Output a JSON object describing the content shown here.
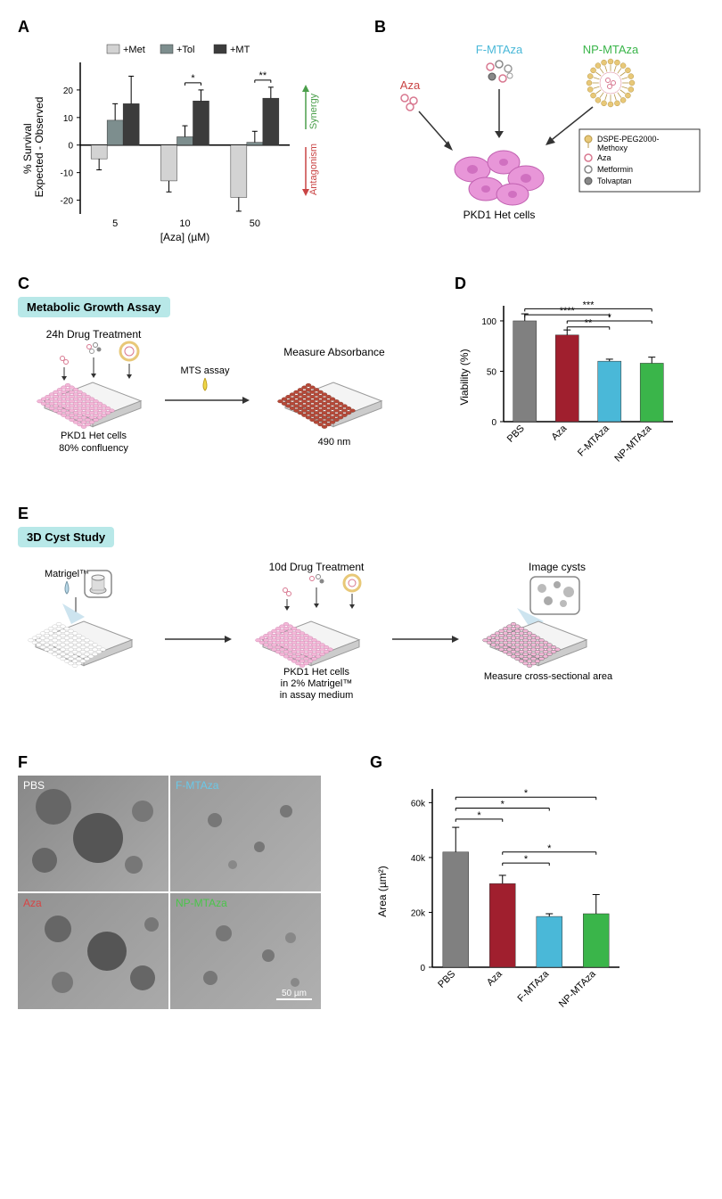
{
  "panelA": {
    "label": "A",
    "type": "bar",
    "ylabel": "% Survival\nExpected - Observed",
    "xlabel": "[Aza] (µM)",
    "categories": [
      "5",
      "10",
      "50"
    ],
    "series": [
      {
        "name": "+Met",
        "color": "#d3d3d3",
        "values": [
          -5,
          -13,
          -19
        ],
        "errors": [
          4,
          4,
          5
        ]
      },
      {
        "name": "+Tol",
        "color": "#7d8e8e",
        "values": [
          9,
          3,
          1
        ],
        "errors": [
          6,
          4,
          4
        ]
      },
      {
        "name": "+MT",
        "color": "#3c3c3c",
        "values": [
          15,
          16,
          17
        ],
        "errors": [
          10,
          4,
          4
        ]
      }
    ],
    "ylim": [
      -25,
      30
    ],
    "ytick_step": 10,
    "synergy_label": "Synergy",
    "synergy_color": "#4a9e4a",
    "antagonism_label": "Antagonism",
    "antagonism_color": "#c94444",
    "sig_markers": [
      {
        "group": 1,
        "from": 1,
        "to": 2,
        "label": "*"
      },
      {
        "group": 2,
        "from": 1,
        "to": 2,
        "label": "**"
      }
    ]
  },
  "panelB": {
    "label": "B",
    "aza_label": "Aza",
    "aza_color": "#c94444",
    "fmtaza_label": "F-MTAza",
    "fmtaza_color": "#4ab8d8",
    "npmtaza_label": "NP-MTAza",
    "npmtaza_color": "#3ab54a",
    "cells_label": "PKD1 Het cells",
    "legend_items": [
      {
        "name": "DSPE-PEG2000-Methoxy",
        "symbol": "lipid",
        "color": "#e8c878"
      },
      {
        "name": "Aza",
        "symbol": "circle",
        "color": "#d87890"
      },
      {
        "name": "Metformin",
        "symbol": "circle",
        "color": "#ffffff"
      },
      {
        "name": "Tolvaptan",
        "symbol": "circle",
        "color": "#888888"
      }
    ]
  },
  "panelC": {
    "label": "C",
    "title": "Metabolic Growth Assay",
    "step1_label": "24h Drug Treatment",
    "step1_sub": "PKD1 Het cells\n80% confluency",
    "mts_label": "MTS assay",
    "step2_label": "Measure Absorbance",
    "step2_sub": "490 nm"
  },
  "panelD": {
    "label": "D",
    "type": "bar",
    "ylabel": "Viability (%)",
    "categories": [
      "PBS",
      "Aza",
      "F-MTAza",
      "NP-MTAza"
    ],
    "values": [
      100,
      86,
      60,
      58
    ],
    "errors": [
      7,
      5,
      2,
      6
    ],
    "colors": [
      "#808080",
      "#a01f2e",
      "#4ab8d8",
      "#3ab54a"
    ],
    "ylim": [
      0,
      115
    ],
    "ytick_step": 50,
    "sig_markers": [
      {
        "from": 0,
        "to": 3,
        "y": 112,
        "label": "***"
      },
      {
        "from": 0,
        "to": 2,
        "y": 106,
        "label": "****"
      },
      {
        "from": 1,
        "to": 3,
        "y": 100,
        "label": "*"
      },
      {
        "from": 1,
        "to": 2,
        "y": 94,
        "label": "**"
      }
    ]
  },
  "panelE": {
    "label": "E",
    "title": "3D Cyst Study",
    "matrigel_label": "Matrigel™",
    "step2_label": "10d Drug Treatment",
    "step2_sub": "PKD1 Het cells\nin 2% Matrigel™\nin assay medium",
    "step3_label": "Image cysts",
    "step3_sub": "Measure cross-sectional area"
  },
  "panelF": {
    "label": "F",
    "images": [
      {
        "label": "PBS",
        "color": "#ffffff"
      },
      {
        "label": "F-MTAza",
        "color": "#6ac8e8"
      },
      {
        "label": "Aza",
        "color": "#d84444"
      },
      {
        "label": "NP-MTAza",
        "color": "#4ac54a"
      }
    ],
    "scale_label": "50 µm"
  },
  "panelG": {
    "label": "G",
    "type": "bar",
    "ylabel": "Area (µm²)",
    "categories": [
      "PBS",
      "Aza",
      "F-MTAza",
      "NP-MTAza"
    ],
    "values": [
      42000,
      30500,
      18500,
      19500
    ],
    "errors": [
      9000,
      3000,
      1000,
      7000
    ],
    "colors": [
      "#808080",
      "#a01f2e",
      "#4ab8d8",
      "#3ab54a"
    ],
    "ylim": [
      0,
      65000
    ],
    "ytick_step": 20000,
    "yticklabels": [
      "0",
      "20k",
      "40k",
      "60k"
    ],
    "sig_markers": [
      {
        "from": 0,
        "to": 3,
        "y": 62000,
        "label": "*"
      },
      {
        "from": 0,
        "to": 2,
        "y": 58000,
        "label": "*"
      },
      {
        "from": 0,
        "to": 1,
        "y": 54000,
        "label": "*"
      },
      {
        "from": 1,
        "to": 3,
        "y": 42000,
        "label": "*"
      },
      {
        "from": 1,
        "to": 2,
        "y": 38000,
        "label": "*"
      }
    ]
  }
}
